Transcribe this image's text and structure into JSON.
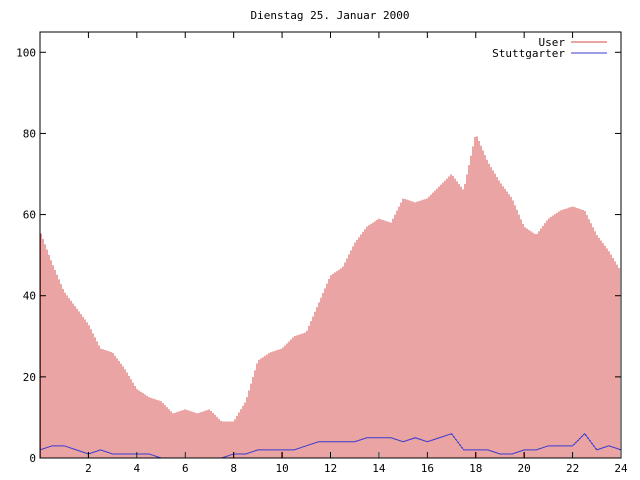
{
  "chart_data": {
    "type": "bar",
    "title": "Dienstag 25. Januar 2000",
    "xlabel": "",
    "ylabel": "",
    "xlim": [
      0,
      24
    ],
    "ylim": [
      0,
      105
    ],
    "grid": false,
    "legend_position": "top-right",
    "x_ticks": [
      2,
      4,
      6,
      8,
      10,
      12,
      14,
      16,
      18,
      20,
      22,
      24
    ],
    "y_ticks": [
      0,
      20,
      40,
      60,
      80,
      100
    ],
    "x_tick_labels": [
      "2",
      "4",
      "6",
      "8",
      "10",
      "12",
      "14",
      "16",
      "18",
      "20",
      "22",
      "24"
    ],
    "y_tick_labels": [
      "0",
      "20",
      "40",
      "60",
      "80",
      "100"
    ],
    "series": [
      {
        "name": "User",
        "style": "impulses",
        "color": "#d44a4a",
        "x": [
          0,
          0.5,
          1,
          1.5,
          2,
          2.5,
          3,
          3.5,
          4,
          4.5,
          5,
          5.5,
          6,
          6.5,
          7,
          7.5,
          8,
          8.5,
          9,
          9.5,
          10,
          10.5,
          11,
          11.5,
          12,
          12.5,
          13,
          13.5,
          14,
          14.5,
          15,
          15.5,
          16,
          16.5,
          17,
          17.5,
          18,
          18.5,
          19,
          19.5,
          20,
          20.5,
          21,
          21.5,
          22,
          22.5,
          23,
          23.5,
          24
        ],
        "values": [
          56,
          48,
          41,
          37,
          33,
          27,
          26,
          22,
          17,
          15,
          14,
          11,
          12,
          11,
          12,
          9,
          9,
          14,
          24,
          26,
          27,
          30,
          31,
          38,
          45,
          47,
          53,
          57,
          59,
          58,
          64,
          63,
          64,
          67,
          70,
          66,
          80,
          73,
          68,
          64,
          57,
          55,
          59,
          61,
          62,
          61,
          55,
          51,
          46
        ]
      },
      {
        "name": "Stuttgarter",
        "style": "line",
        "color": "#3a3ad0",
        "x": [
          0,
          0.5,
          1,
          1.5,
          2,
          2.5,
          3,
          3.5,
          4,
          4.5,
          5,
          5.5,
          6,
          6.5,
          7,
          7.5,
          8,
          8.5,
          9,
          9.5,
          10,
          10.5,
          11,
          11.5,
          12,
          12.5,
          13,
          13.5,
          14,
          14.5,
          15,
          15.5,
          16,
          16.5,
          17,
          17.5,
          18,
          18.5,
          19,
          19.5,
          20,
          20.5,
          21,
          21.5,
          22,
          22.5,
          23,
          23.5,
          24
        ],
        "values": [
          2,
          3,
          3,
          2,
          1,
          2,
          1,
          1,
          1,
          1,
          0,
          0,
          0,
          0,
          0,
          0,
          1,
          1,
          2,
          2,
          2,
          2,
          3,
          4,
          4,
          4,
          4,
          5,
          5,
          5,
          4,
          5,
          4,
          5,
          6,
          2,
          2,
          2,
          1,
          1,
          2,
          2,
          3,
          3,
          3,
          6,
          2,
          3,
          2
        ]
      }
    ]
  }
}
